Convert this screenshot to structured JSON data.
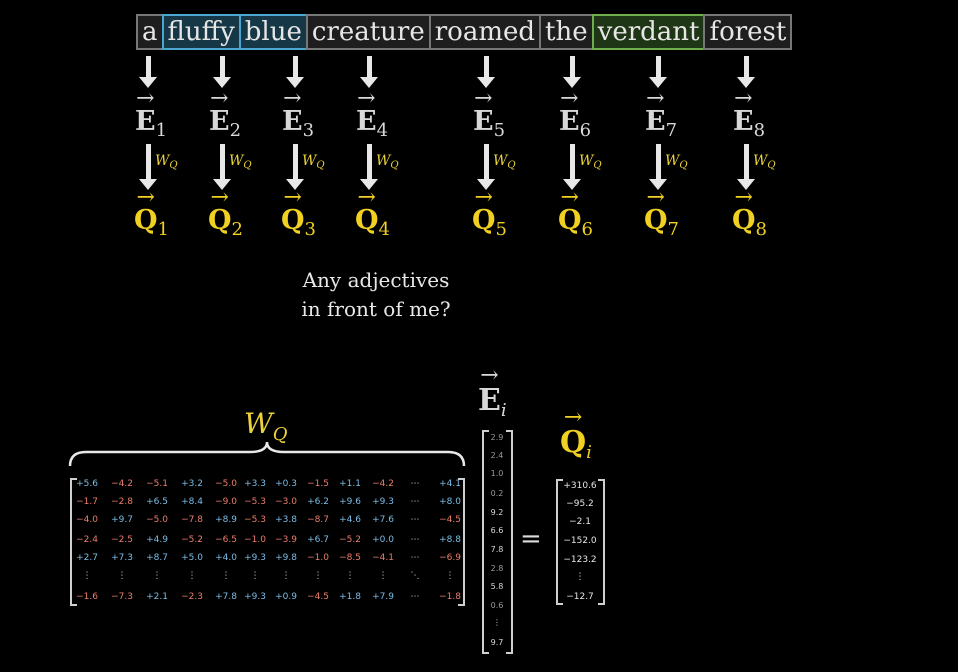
{
  "tokens": [
    {
      "text": "a",
      "style": "plain"
    },
    {
      "text": "fluffy",
      "style": "blue"
    },
    {
      "text": "blue",
      "style": "blue"
    },
    {
      "text": "creature",
      "style": "plain"
    },
    {
      "text": "roamed",
      "style": "plain"
    },
    {
      "text": "the",
      "style": "plain"
    },
    {
      "text": "verdant",
      "style": "green"
    },
    {
      "text": "forest",
      "style": "plain"
    }
  ],
  "embedding_symbol": "E",
  "query_symbol": "Q",
  "subscripts": [
    "1",
    "2",
    "3",
    "4",
    "5",
    "6",
    "7",
    "8"
  ],
  "wq_symbol": "W",
  "wq_subscript": "Q",
  "question": {
    "line1": "Any adjectives",
    "line2": "in front of me?"
  },
  "matrix": {
    "label": "W",
    "label_subscript": "Q",
    "rows": [
      [
        "+5.6",
        "−4.2",
        "−5.1",
        "+3.2",
        "−5.0",
        "+3.3",
        "+0.3",
        "−1.5",
        "+1.1",
        "−4.2",
        "⋯",
        "+4.1"
      ],
      [
        "−1.7",
        "−2.8",
        "+6.5",
        "+8.4",
        "−9.0",
        "−5.3",
        "−3.0",
        "+6.2",
        "+9.6",
        "+9.3",
        "⋯",
        "+8.0"
      ],
      [
        "−4.0",
        "+9.7",
        "−5.0",
        "−7.8",
        "+8.9",
        "−5.3",
        "+3.8",
        "−8.7",
        "+4.6",
        "+7.6",
        "⋯",
        "−4.5"
      ],
      [
        "−2.4",
        "−2.5",
        "+4.9",
        "−5.2",
        "−6.5",
        "−1.0",
        "−3.9",
        "+6.7",
        "−5.2",
        "+0.0",
        "⋯",
        "+8.8"
      ],
      [
        "+2.7",
        "+7.3",
        "+8.7",
        "+5.0",
        "+4.0",
        "+9.3",
        "+9.8",
        "−1.0",
        "−8.5",
        "−4.1",
        "⋯",
        "−6.9"
      ],
      [
        "⋮",
        "⋮",
        "⋮",
        "⋮",
        "⋮",
        "⋮",
        "⋮",
        "⋮",
        "⋮",
        "⋮",
        "⋱",
        "⋮"
      ],
      [
        "−1.6",
        "−7.3",
        "+2.1",
        "−2.3",
        "+7.8",
        "+9.3",
        "+0.9",
        "−4.5",
        "+1.8",
        "+7.9",
        "⋯",
        "−1.8"
      ]
    ]
  },
  "input_vector": {
    "symbol": "E",
    "subscript": "i",
    "values": [
      "2.9",
      "2.4",
      "1.0",
      "0.2",
      "9.2",
      "6.6",
      "7.8",
      "2.8",
      "5.8",
      "0.6",
      "⋮",
      "9.7"
    ]
  },
  "equals": "=",
  "output_vector": {
    "symbol": "Q",
    "subscript": "i",
    "values": [
      "+310.6",
      "−95.2",
      "−2.1",
      "−152.0",
      "−123.2",
      "⋮",
      "−12.7"
    ]
  },
  "colors": {
    "query_yellow": "#f0d020",
    "positive_blue": "#7cbde6",
    "negative_red": "#ec7d6c",
    "token_blue": "#4da6d2",
    "token_green": "#6fae4c"
  }
}
